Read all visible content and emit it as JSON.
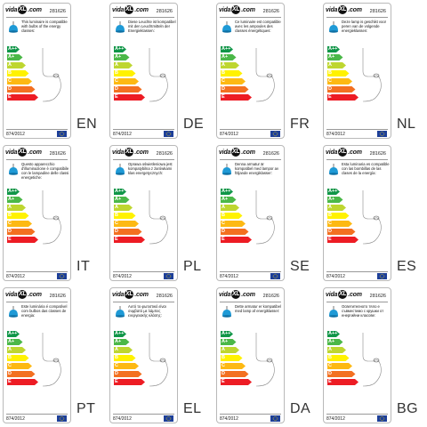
{
  "brand": {
    "prefix": "vida",
    "mark": "XL",
    "suffix": ".com"
  },
  "product_code": "281626",
  "regulation": "874/2012",
  "energy_classes": [
    {
      "label": "A++",
      "color": "#109648"
    },
    {
      "label": "A+",
      "color": "#4bb848"
    },
    {
      "label": "A",
      "color": "#bed630"
    },
    {
      "label": "B",
      "color": "#fff200"
    },
    {
      "label": "C",
      "color": "#fdb913"
    },
    {
      "label": "D",
      "color": "#f37021"
    },
    {
      "label": "E",
      "color": "#ed1c24"
    }
  ],
  "icons": {
    "lamp": "pendant-lamp-icon",
    "eu_flag": "eu-flag-icon",
    "cord": "plug-cord-icon"
  },
  "colors": {
    "lamp_blue": "#1f9ad6",
    "eu_blue": "#1d3f99",
    "eu_star": "#ffdd00"
  },
  "labels": [
    {
      "lang": "EN",
      "text": "This luminaire is compatible with bulbs of the energy classes:"
    },
    {
      "lang": "DE",
      "text": "Diese Leuchte ist kompatibel mit den Leuchtmitteln der Energieklassen:"
    },
    {
      "lang": "FR",
      "text": "Ce luminaire est compatible avec les ampoules des classes énergétiques:"
    },
    {
      "lang": "NL",
      "text": "Deze lamp is geschikt voor peren van de volgende energieklassen:"
    },
    {
      "lang": "IT",
      "text": "Questo apparecchio d'illuminazione è compatibile con le lampadine delle classi energetiche:"
    },
    {
      "lang": "PL",
      "text": "Oprawa oświetleniowa jest kompatybilna z żarówkami klas energetycznych:"
    },
    {
      "lang": "SE",
      "text": "Denna armatur är kompatibel med lampor av följande energiklasser:"
    },
    {
      "lang": "ES",
      "text": "Esta luminaria es compatible con las bombillas de las clases de la energía:"
    },
    {
      "lang": "PT",
      "text": "Este luminária é compatível com bulbos das classes de energia:"
    },
    {
      "lang": "EL",
      "text": "Αυτό το φωτιστικό είναι συμβατό με λάμπες ενεργειακής κλάσης:"
    },
    {
      "lang": "DA",
      "text": "Dette armatur er kompatibel med lamp af energiklasser:"
    },
    {
      "lang": "BG",
      "text": "Осветителното тяло е съвместимо с крушки от енергийни класове:"
    }
  ]
}
